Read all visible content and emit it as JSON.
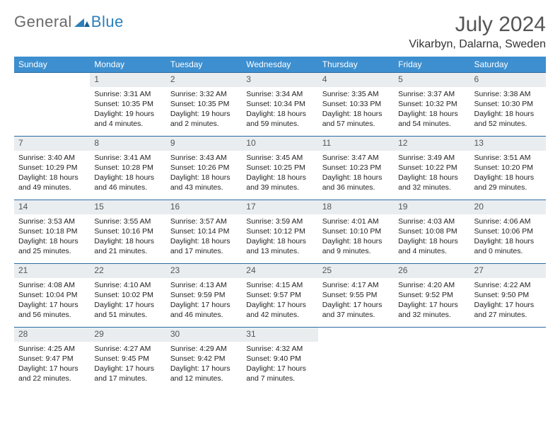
{
  "brand": {
    "general": "General",
    "blue": "Blue"
  },
  "title": "July 2024",
  "location": "Vikarbyn, Dalarna, Sweden",
  "colors": {
    "header_bg": "#3d8fcf",
    "header_text": "#ffffff",
    "daynum_bg": "#e9edf0",
    "row_border": "#2c6aa0",
    "brand_blue": "#2c7fb8"
  },
  "typography": {
    "month_fontsize": 30,
    "location_fontsize": 16,
    "weekday_fontsize": 12,
    "daynum_fontsize": 12,
    "daytext_fontsize": 10.5
  },
  "weekdays": [
    "Sunday",
    "Monday",
    "Tuesday",
    "Wednesday",
    "Thursday",
    "Friday",
    "Saturday"
  ],
  "weeks": [
    [
      null,
      {
        "n": "1",
        "sunrise": "Sunrise: 3:31 AM",
        "sunset": "Sunset: 10:35 PM",
        "daylight": "Daylight: 19 hours and 4 minutes."
      },
      {
        "n": "2",
        "sunrise": "Sunrise: 3:32 AM",
        "sunset": "Sunset: 10:35 PM",
        "daylight": "Daylight: 19 hours and 2 minutes."
      },
      {
        "n": "3",
        "sunrise": "Sunrise: 3:34 AM",
        "sunset": "Sunset: 10:34 PM",
        "daylight": "Daylight: 18 hours and 59 minutes."
      },
      {
        "n": "4",
        "sunrise": "Sunrise: 3:35 AM",
        "sunset": "Sunset: 10:33 PM",
        "daylight": "Daylight: 18 hours and 57 minutes."
      },
      {
        "n": "5",
        "sunrise": "Sunrise: 3:37 AM",
        "sunset": "Sunset: 10:32 PM",
        "daylight": "Daylight: 18 hours and 54 minutes."
      },
      {
        "n": "6",
        "sunrise": "Sunrise: 3:38 AM",
        "sunset": "Sunset: 10:30 PM",
        "daylight": "Daylight: 18 hours and 52 minutes."
      }
    ],
    [
      {
        "n": "7",
        "sunrise": "Sunrise: 3:40 AM",
        "sunset": "Sunset: 10:29 PM",
        "daylight": "Daylight: 18 hours and 49 minutes."
      },
      {
        "n": "8",
        "sunrise": "Sunrise: 3:41 AM",
        "sunset": "Sunset: 10:28 PM",
        "daylight": "Daylight: 18 hours and 46 minutes."
      },
      {
        "n": "9",
        "sunrise": "Sunrise: 3:43 AM",
        "sunset": "Sunset: 10:26 PM",
        "daylight": "Daylight: 18 hours and 43 minutes."
      },
      {
        "n": "10",
        "sunrise": "Sunrise: 3:45 AM",
        "sunset": "Sunset: 10:25 PM",
        "daylight": "Daylight: 18 hours and 39 minutes."
      },
      {
        "n": "11",
        "sunrise": "Sunrise: 3:47 AM",
        "sunset": "Sunset: 10:23 PM",
        "daylight": "Daylight: 18 hours and 36 minutes."
      },
      {
        "n": "12",
        "sunrise": "Sunrise: 3:49 AM",
        "sunset": "Sunset: 10:22 PM",
        "daylight": "Daylight: 18 hours and 32 minutes."
      },
      {
        "n": "13",
        "sunrise": "Sunrise: 3:51 AM",
        "sunset": "Sunset: 10:20 PM",
        "daylight": "Daylight: 18 hours and 29 minutes."
      }
    ],
    [
      {
        "n": "14",
        "sunrise": "Sunrise: 3:53 AM",
        "sunset": "Sunset: 10:18 PM",
        "daylight": "Daylight: 18 hours and 25 minutes."
      },
      {
        "n": "15",
        "sunrise": "Sunrise: 3:55 AM",
        "sunset": "Sunset: 10:16 PM",
        "daylight": "Daylight: 18 hours and 21 minutes."
      },
      {
        "n": "16",
        "sunrise": "Sunrise: 3:57 AM",
        "sunset": "Sunset: 10:14 PM",
        "daylight": "Daylight: 18 hours and 17 minutes."
      },
      {
        "n": "17",
        "sunrise": "Sunrise: 3:59 AM",
        "sunset": "Sunset: 10:12 PM",
        "daylight": "Daylight: 18 hours and 13 minutes."
      },
      {
        "n": "18",
        "sunrise": "Sunrise: 4:01 AM",
        "sunset": "Sunset: 10:10 PM",
        "daylight": "Daylight: 18 hours and 9 minutes."
      },
      {
        "n": "19",
        "sunrise": "Sunrise: 4:03 AM",
        "sunset": "Sunset: 10:08 PM",
        "daylight": "Daylight: 18 hours and 4 minutes."
      },
      {
        "n": "20",
        "sunrise": "Sunrise: 4:06 AM",
        "sunset": "Sunset: 10:06 PM",
        "daylight": "Daylight: 18 hours and 0 minutes."
      }
    ],
    [
      {
        "n": "21",
        "sunrise": "Sunrise: 4:08 AM",
        "sunset": "Sunset: 10:04 PM",
        "daylight": "Daylight: 17 hours and 56 minutes."
      },
      {
        "n": "22",
        "sunrise": "Sunrise: 4:10 AM",
        "sunset": "Sunset: 10:02 PM",
        "daylight": "Daylight: 17 hours and 51 minutes."
      },
      {
        "n": "23",
        "sunrise": "Sunrise: 4:13 AM",
        "sunset": "Sunset: 9:59 PM",
        "daylight": "Daylight: 17 hours and 46 minutes."
      },
      {
        "n": "24",
        "sunrise": "Sunrise: 4:15 AM",
        "sunset": "Sunset: 9:57 PM",
        "daylight": "Daylight: 17 hours and 42 minutes."
      },
      {
        "n": "25",
        "sunrise": "Sunrise: 4:17 AM",
        "sunset": "Sunset: 9:55 PM",
        "daylight": "Daylight: 17 hours and 37 minutes."
      },
      {
        "n": "26",
        "sunrise": "Sunrise: 4:20 AM",
        "sunset": "Sunset: 9:52 PM",
        "daylight": "Daylight: 17 hours and 32 minutes."
      },
      {
        "n": "27",
        "sunrise": "Sunrise: 4:22 AM",
        "sunset": "Sunset: 9:50 PM",
        "daylight": "Daylight: 17 hours and 27 minutes."
      }
    ],
    [
      {
        "n": "28",
        "sunrise": "Sunrise: 4:25 AM",
        "sunset": "Sunset: 9:47 PM",
        "daylight": "Daylight: 17 hours and 22 minutes."
      },
      {
        "n": "29",
        "sunrise": "Sunrise: 4:27 AM",
        "sunset": "Sunset: 9:45 PM",
        "daylight": "Daylight: 17 hours and 17 minutes."
      },
      {
        "n": "30",
        "sunrise": "Sunrise: 4:29 AM",
        "sunset": "Sunset: 9:42 PM",
        "daylight": "Daylight: 17 hours and 12 minutes."
      },
      {
        "n": "31",
        "sunrise": "Sunrise: 4:32 AM",
        "sunset": "Sunset: 9:40 PM",
        "daylight": "Daylight: 17 hours and 7 minutes."
      },
      null,
      null,
      null
    ]
  ]
}
